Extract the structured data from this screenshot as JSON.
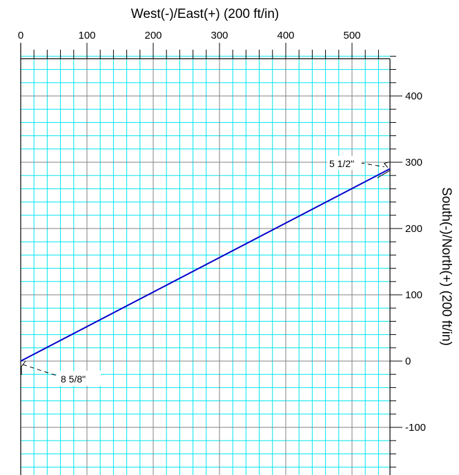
{
  "chart_data": {
    "type": "line",
    "xlabel": "West(-)/East(+) (200 ft/in)",
    "ylabel": "South(-)/North(+) (200 ft/in)",
    "xlim": [
      0,
      557
    ],
    "ylim": [
      -180,
      460
    ],
    "x_ticks": [
      0,
      100,
      200,
      300,
      400,
      500
    ],
    "y_ticks": [
      -100,
      0,
      100,
      200,
      300,
      400
    ],
    "x_tick_labels": [
      "0",
      "100",
      "200",
      "300",
      "400",
      "500"
    ],
    "y_tick_labels": [
      "-100",
      "0",
      "100",
      "200",
      "300",
      "400"
    ],
    "x_minor_step": 20,
    "y_minor_step": 20,
    "grid": true,
    "colors": {
      "grid_minor": "#00e5ee",
      "grid_major": "#808080",
      "line": "#0000cc"
    },
    "series": [
      {
        "x": [
          0,
          557
        ],
        "y": [
          0,
          290
        ]
      }
    ],
    "annotations": [
      {
        "text": "8 5/8\"",
        "x": 0,
        "y": 0
      },
      {
        "text": "5 1/2\"",
        "x": 557,
        "y": 290
      }
    ]
  }
}
